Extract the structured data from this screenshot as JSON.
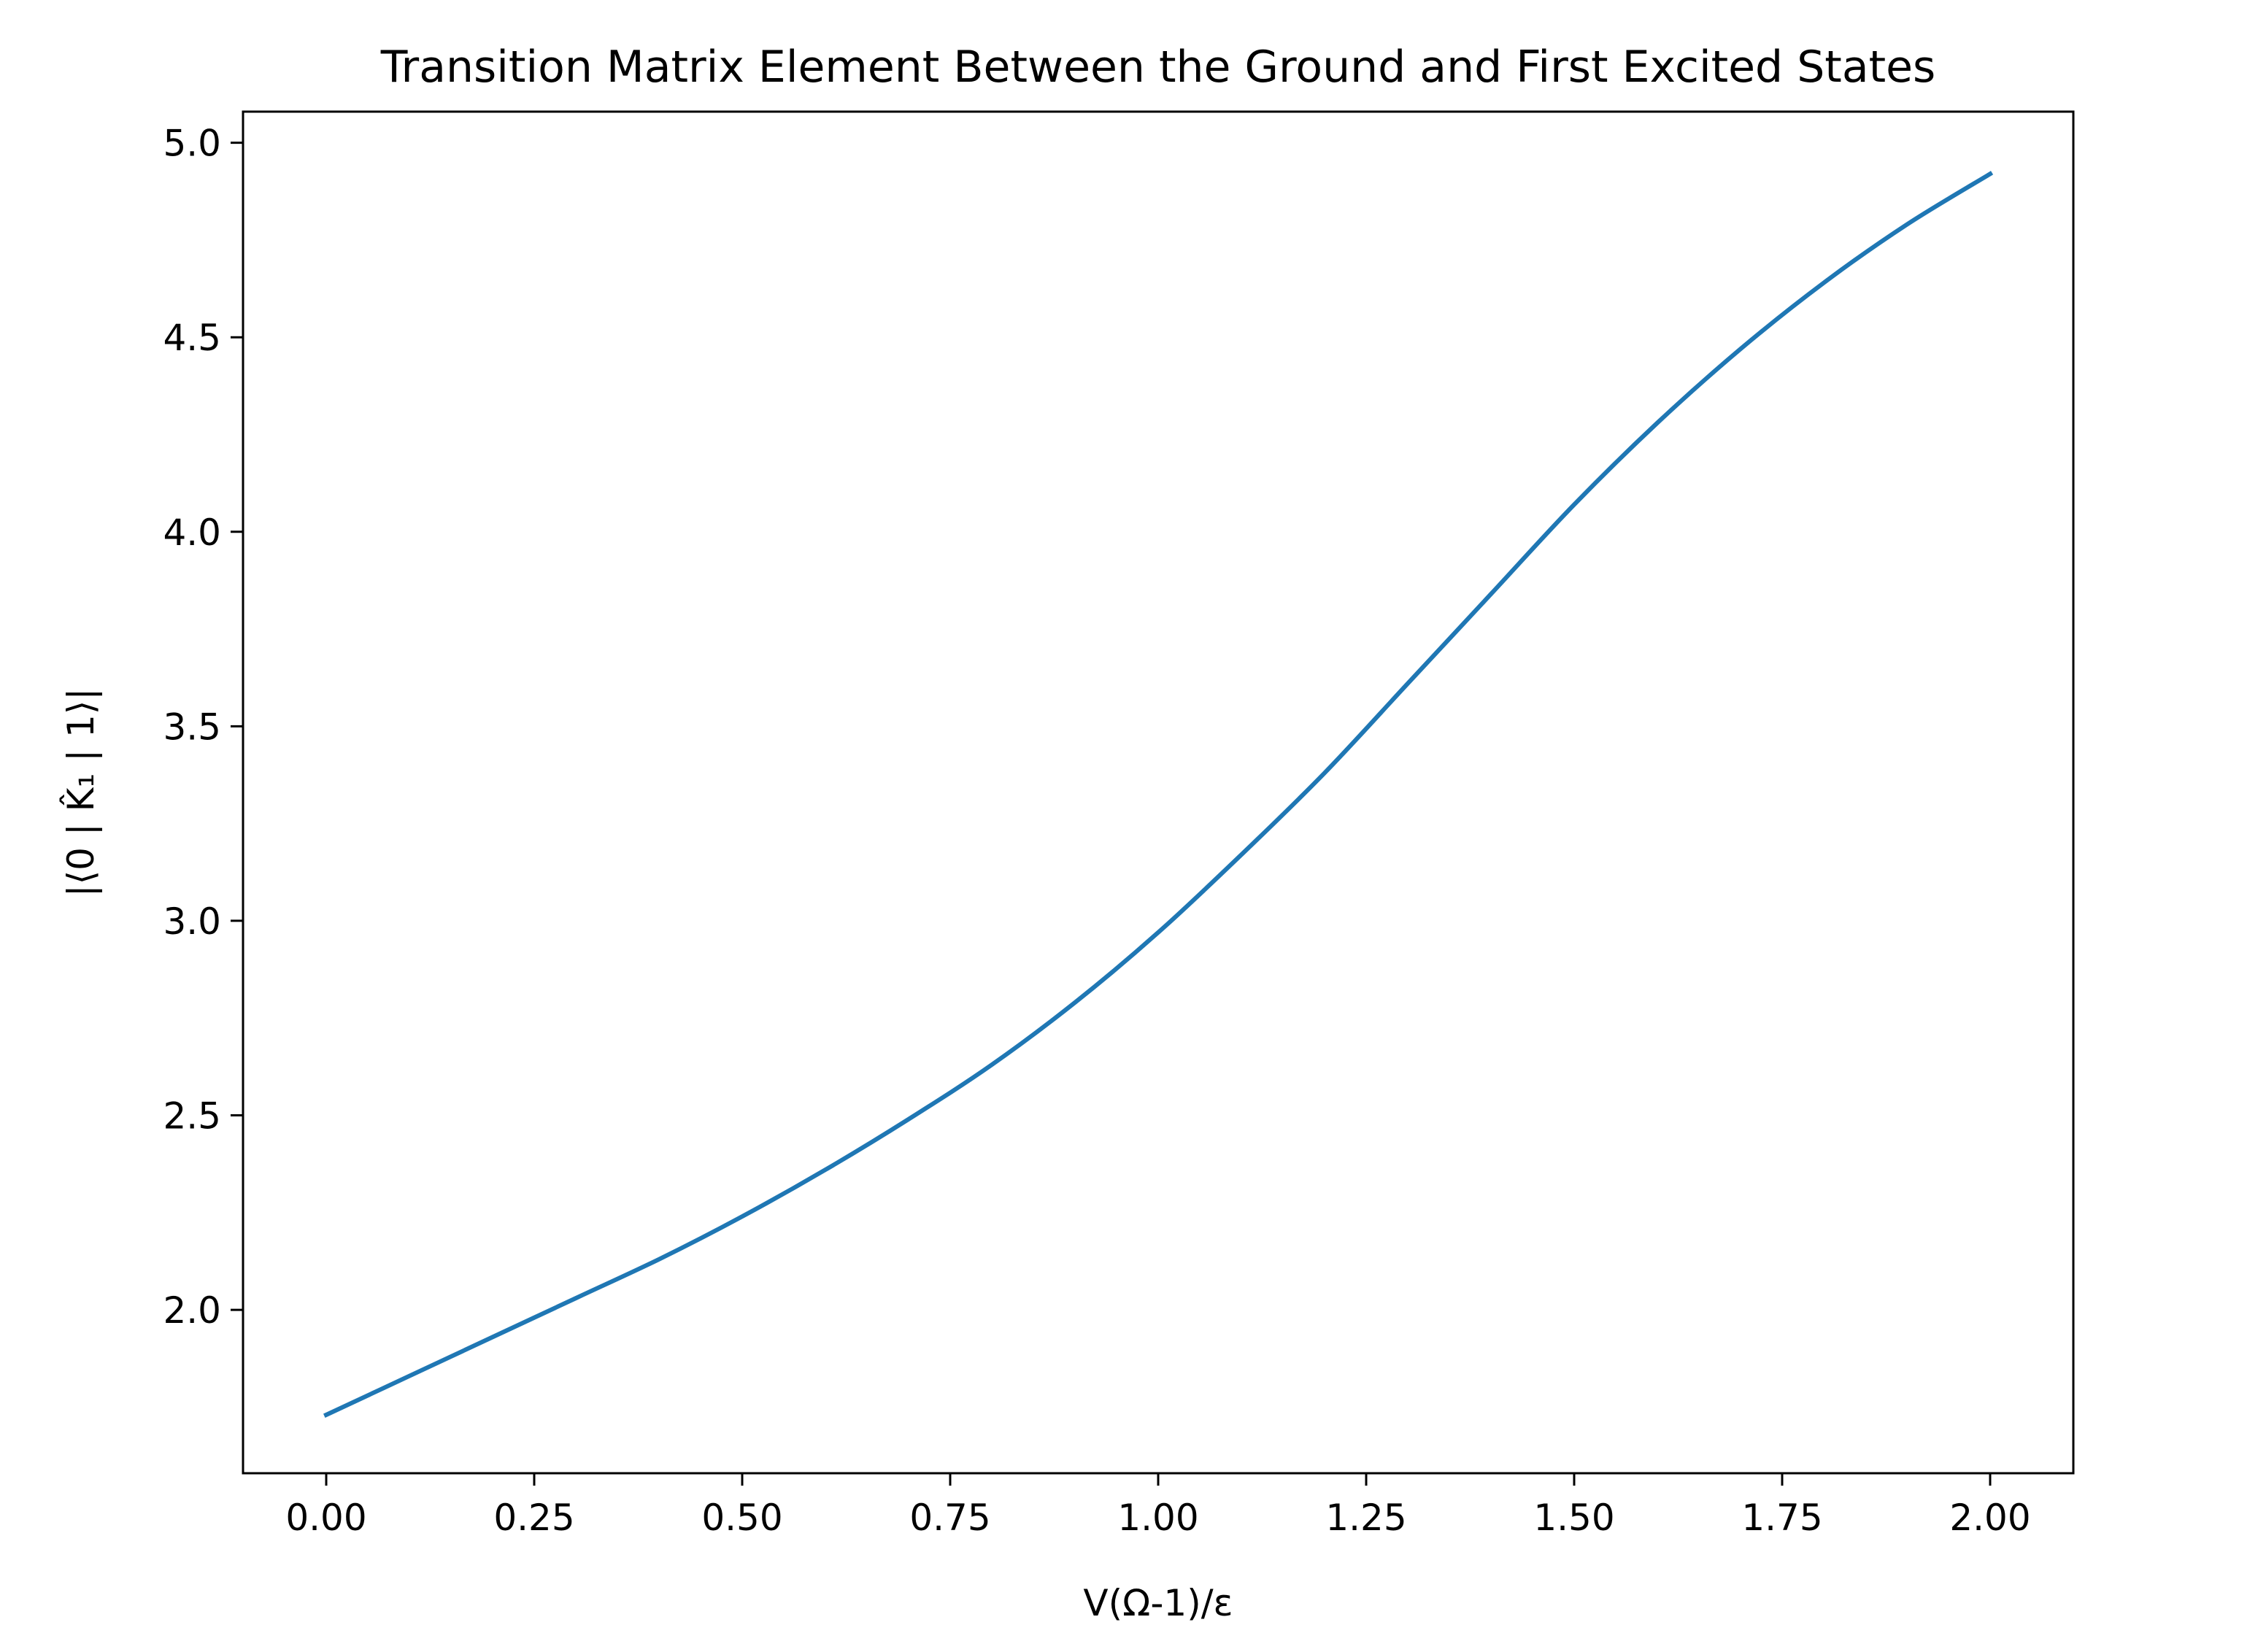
{
  "chart_data": {
    "type": "line",
    "title": "Transition Matrix Element Between the Ground and First Excited States",
    "xlabel": "V(Ω-1)/ε",
    "ylabel": "|⟨0 | K̂₁ | 1⟩|",
    "xlim": [
      -0.1,
      2.1
    ],
    "ylim": [
      1.58,
      5.08
    ],
    "xticks": [
      0.0,
      0.25,
      0.5,
      0.75,
      1.0,
      1.25,
      1.5,
      1.75,
      2.0
    ],
    "xtick_labels": [
      "0.00",
      "0.25",
      "0.50",
      "0.75",
      "1.00",
      "1.25",
      "1.50",
      "1.75",
      "2.00"
    ],
    "yticks": [
      2.0,
      2.5,
      3.0,
      3.5,
      4.0,
      4.5,
      5.0
    ],
    "ytick_labels": [
      "2.0",
      "2.5",
      "3.0",
      "3.5",
      "4.0",
      "4.5",
      "5.0"
    ],
    "grid": false,
    "colors": {
      "line": "#1f77b4",
      "axes": "#000000"
    },
    "series": [
      {
        "x": [
          0.0,
          0.1,
          0.2,
          0.3,
          0.4,
          0.5,
          0.6,
          0.7,
          0.8,
          0.9,
          1.0,
          1.1,
          1.2,
          1.3,
          1.4,
          1.5,
          1.6,
          1.7,
          1.8,
          1.9,
          2.0
        ],
        "values": [
          1.73,
          1.83,
          1.93,
          2.03,
          2.13,
          2.24,
          2.36,
          2.49,
          2.63,
          2.79,
          2.97,
          3.17,
          3.38,
          3.61,
          3.84,
          4.07,
          4.28,
          4.47,
          4.64,
          4.79,
          4.92
        ]
      }
    ]
  }
}
